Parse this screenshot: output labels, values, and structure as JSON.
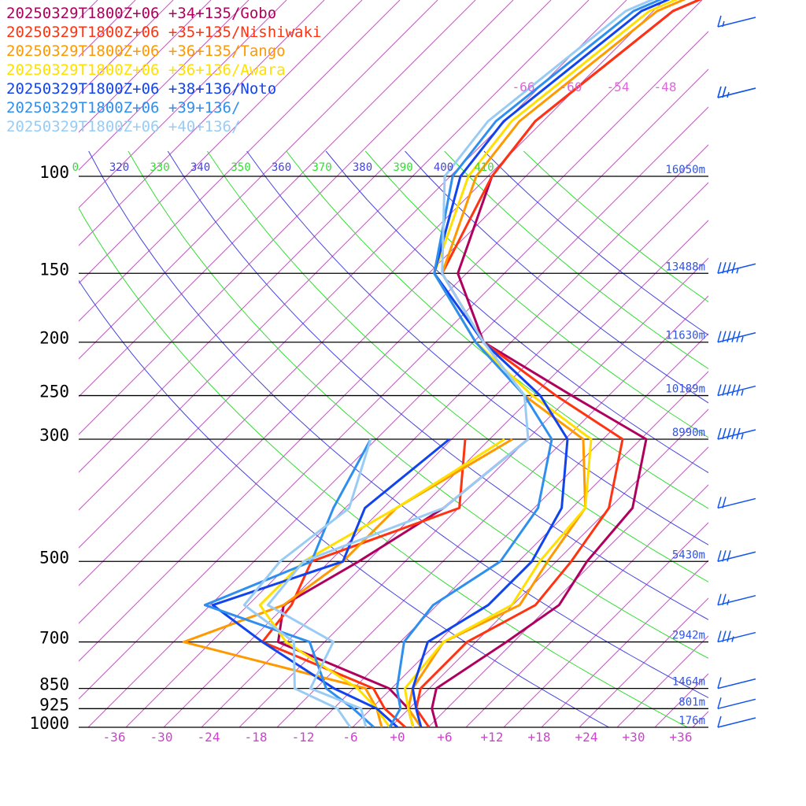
{
  "chart_data": {
    "type": "line",
    "diagram": "skew-T log-P sounding",
    "legend": [
      {
        "label": "20250329T1800Z+06 +34+135/Gobo",
        "color": "#b0005e"
      },
      {
        "label": "20250329T1800Z+06 +35+135/Nishiwaki",
        "color": "#ff3311"
      },
      {
        "label": "20250329T1800Z+06 +36+135/Tango",
        "color": "#ff9900"
      },
      {
        "label": "20250329T1800Z+06 +36+136/Awara",
        "color": "#ffe000"
      },
      {
        "label": "20250329T1800Z+06 +38+136/Noto",
        "color": "#1144ee"
      },
      {
        "label": "20250329T1800Z+06 +39+136/",
        "color": "#2f8fee"
      },
      {
        "label": "20250329T1800Z+06 +40+136/",
        "color": "#99ccf4"
      }
    ],
    "pressure_levels": [
      {
        "p": 100,
        "label": "100",
        "height": "16050m"
      },
      {
        "p": 150,
        "label": "150",
        "height": "13488m"
      },
      {
        "p": 200,
        "label": "200",
        "height": "11630m"
      },
      {
        "p": 250,
        "label": "250",
        "height": "10189m"
      },
      {
        "p": 300,
        "label": "300",
        "height": "8990m"
      },
      {
        "p": 500,
        "label": "500",
        "height": "5430m"
      },
      {
        "p": 700,
        "label": "700",
        "height": "2942m"
      },
      {
        "p": 850,
        "label": "850",
        "height": "1464m"
      },
      {
        "p": 925,
        "label": "925",
        "height": "801m"
      },
      {
        "p": 1000,
        "label": "1000",
        "height": "176m"
      }
    ],
    "temperature_ticks": [
      "-36",
      "-30",
      "-24",
      "-18",
      "-12",
      "-6",
      "+0",
      "+6",
      "+12",
      "+18",
      "+24",
      "+30",
      "+36"
    ],
    "isotherm_labels_top": [
      "-66",
      "-60",
      "-54",
      "-48"
    ],
    "theta_labels": [
      {
        "text": "0",
        "color": "#33dd33"
      },
      {
        "text": "320",
        "color": "#4444dd"
      },
      {
        "text": "330",
        "color": "#33dd33"
      },
      {
        "text": "340",
        "color": "#4444dd"
      },
      {
        "text": "350",
        "color": "#33dd33"
      },
      {
        "text": "360",
        "color": "#4444dd"
      },
      {
        "text": "370",
        "color": "#33dd33"
      },
      {
        "text": "380",
        "color": "#4444dd"
      },
      {
        "text": "390",
        "color": "#33dd33"
      },
      {
        "text": "400",
        "color": "#4444dd"
      },
      {
        "text": "410",
        "color": "#33dd33"
      }
    ],
    "x_range_degC": [
      -40,
      40
    ],
    "y_range_hPa": [
      1000,
      100
    ],
    "series": [
      {
        "name": "20250329T1800Z+06 +34+135/Gobo",
        "color": "#b0005e",
        "temperature": [
          [
            1000,
            5
          ],
          [
            925,
            2
          ],
          [
            850,
            0
          ],
          [
            700,
            3
          ],
          [
            600,
            5
          ],
          [
            500,
            3
          ],
          [
            400,
            2
          ],
          [
            300,
            -5
          ],
          [
            250,
            -20
          ],
          [
            200,
            -38
          ],
          [
            150,
            -50
          ],
          [
            100,
            -58
          ]
        ],
        "dewpoint": [
          [
            1000,
            2
          ],
          [
            925,
            -1
          ],
          [
            850,
            -6
          ],
          [
            700,
            -26
          ],
          [
            600,
            -30
          ],
          [
            500,
            -26
          ],
          [
            400,
            -22
          ],
          [
            300,
            -20
          ]
        ]
      },
      {
        "name": "20250329T1800Z+06 +35+135/Nishiwaki",
        "color": "#ff3311",
        "temperature": [
          [
            1000,
            4
          ],
          [
            925,
            0
          ],
          [
            850,
            -2
          ],
          [
            700,
            -2
          ],
          [
            600,
            2
          ],
          [
            500,
            1
          ],
          [
            400,
            -1
          ],
          [
            300,
            -8
          ],
          [
            250,
            -22
          ],
          [
            200,
            -38
          ],
          [
            150,
            -52
          ],
          [
            100,
            -58
          ]
        ],
        "dewpoint": [
          [
            1000,
            1
          ],
          [
            925,
            -4
          ],
          [
            850,
            -8
          ],
          [
            700,
            -28
          ],
          [
            600,
            -29
          ],
          [
            500,
            -32
          ],
          [
            400,
            -20
          ],
          [
            300,
            -28
          ]
        ]
      },
      {
        "name": "20250329T1800Z+06 +36+135/Tango",
        "color": "#ff9900",
        "temperature": [
          [
            1000,
            3
          ],
          [
            925,
            -1
          ],
          [
            850,
            -3
          ],
          [
            700,
            -5
          ],
          [
            600,
            0
          ],
          [
            500,
            -2
          ],
          [
            400,
            -4
          ],
          [
            300,
            -13
          ],
          [
            250,
            -26
          ],
          [
            200,
            -38
          ],
          [
            150,
            -52
          ],
          [
            100,
            -60
          ]
        ],
        "dewpoint": [
          [
            1000,
            -2
          ],
          [
            925,
            -5
          ],
          [
            850,
            -9
          ],
          [
            700,
            -38
          ],
          [
            600,
            -30
          ],
          [
            500,
            -28
          ],
          [
            400,
            -28
          ],
          [
            300,
            -22
          ]
        ]
      },
      {
        "name": "20250329T1800Z+06 +36+136/Awara",
        "color": "#ffe000",
        "temperature": [
          [
            1000,
            2
          ],
          [
            925,
            -1
          ],
          [
            850,
            -4
          ],
          [
            700,
            -5
          ],
          [
            600,
            -1
          ],
          [
            500,
            -3
          ],
          [
            400,
            -4
          ],
          [
            300,
            -12
          ],
          [
            250,
            -25
          ],
          [
            200,
            -39
          ],
          [
            150,
            -53
          ],
          [
            100,
            -61
          ]
        ],
        "dewpoint": [
          [
            1000,
            -1
          ],
          [
            925,
            -5
          ],
          [
            850,
            -10
          ],
          [
            700,
            -25
          ],
          [
            600,
            -33
          ],
          [
            500,
            -33
          ],
          [
            400,
            -28
          ],
          [
            300,
            -23
          ]
        ]
      },
      {
        "name": "20250329T1800Z+06 +38+136/Noto",
        "color": "#1144ee",
        "temperature": [
          [
            1000,
            3
          ],
          [
            925,
            0
          ],
          [
            850,
            -3
          ],
          [
            700,
            -7
          ],
          [
            600,
            -4
          ],
          [
            500,
            -4
          ],
          [
            400,
            -7
          ],
          [
            300,
            -15
          ],
          [
            250,
            -24
          ],
          [
            200,
            -38
          ],
          [
            150,
            -53
          ],
          [
            100,
            -62
          ]
        ],
        "dewpoint": [
          [
            1000,
            0
          ],
          [
            925,
            -5
          ],
          [
            850,
            -13
          ],
          [
            700,
            -28
          ],
          [
            600,
            -39
          ],
          [
            500,
            -28
          ],
          [
            400,
            -32
          ],
          [
            300,
            -30
          ]
        ]
      },
      {
        "name": "20250329T1800Z+06 +39+136/",
        "color": "#2f8fee",
        "temperature": [
          [
            1000,
            -1
          ],
          [
            925,
            -2
          ],
          [
            850,
            -5
          ],
          [
            700,
            -10
          ],
          [
            600,
            -11
          ],
          [
            500,
            -8
          ],
          [
            400,
            -10
          ],
          [
            300,
            -17
          ],
          [
            250,
            -26
          ],
          [
            200,
            -39
          ],
          [
            150,
            -53
          ],
          [
            100,
            -63
          ]
        ],
        "dewpoint": [
          [
            1000,
            -3
          ],
          [
            925,
            -8
          ],
          [
            850,
            -14
          ],
          [
            700,
            -22
          ],
          [
            600,
            -40
          ],
          [
            500,
            -32
          ],
          [
            400,
            -36
          ],
          [
            300,
            -40
          ]
        ]
      },
      {
        "name": "20250329T1800Z+06 +40+136/",
        "color": "#99ccf4",
        "temperature": [
          [
            1000,
            -4
          ],
          [
            925,
            -7
          ],
          [
            850,
            -16
          ],
          [
            700,
            -19
          ],
          [
            600,
            -32
          ],
          [
            500,
            -33
          ],
          [
            400,
            -22
          ],
          [
            300,
            -20
          ],
          [
            250,
            -26
          ],
          [
            200,
            -38
          ],
          [
            150,
            -52
          ],
          [
            100,
            -64
          ]
        ],
        "dewpoint": [
          [
            1000,
            -6
          ],
          [
            925,
            -10
          ],
          [
            850,
            -18
          ],
          [
            700,
            -24
          ],
          [
            600,
            -35
          ],
          [
            500,
            -36
          ],
          [
            400,
            -34
          ],
          [
            300,
            -40
          ]
        ]
      }
    ],
    "wind_barbs": [
      {
        "p": 50,
        "speed_kt": 5
      },
      {
        "p": 70,
        "speed_kt": 15
      },
      {
        "p": 100,
        "speed_kt": 20
      },
      {
        "p": 150,
        "speed_kt": 35
      },
      {
        "p": 200,
        "speed_kt": 45
      },
      {
        "p": 250,
        "speed_kt": 45
      },
      {
        "p": 300,
        "speed_kt": 45
      },
      {
        "p": 400,
        "speed_kt": 20
      },
      {
        "p": 500,
        "speed_kt": 30
      },
      {
        "p": 600,
        "speed_kt": 15
      },
      {
        "p": 700,
        "speed_kt": 25
      },
      {
        "p": 850,
        "speed_kt": 10
      },
      {
        "p": 925,
        "speed_kt": 10
      },
      {
        "p": 1000,
        "speed_kt": 10
      }
    ]
  }
}
